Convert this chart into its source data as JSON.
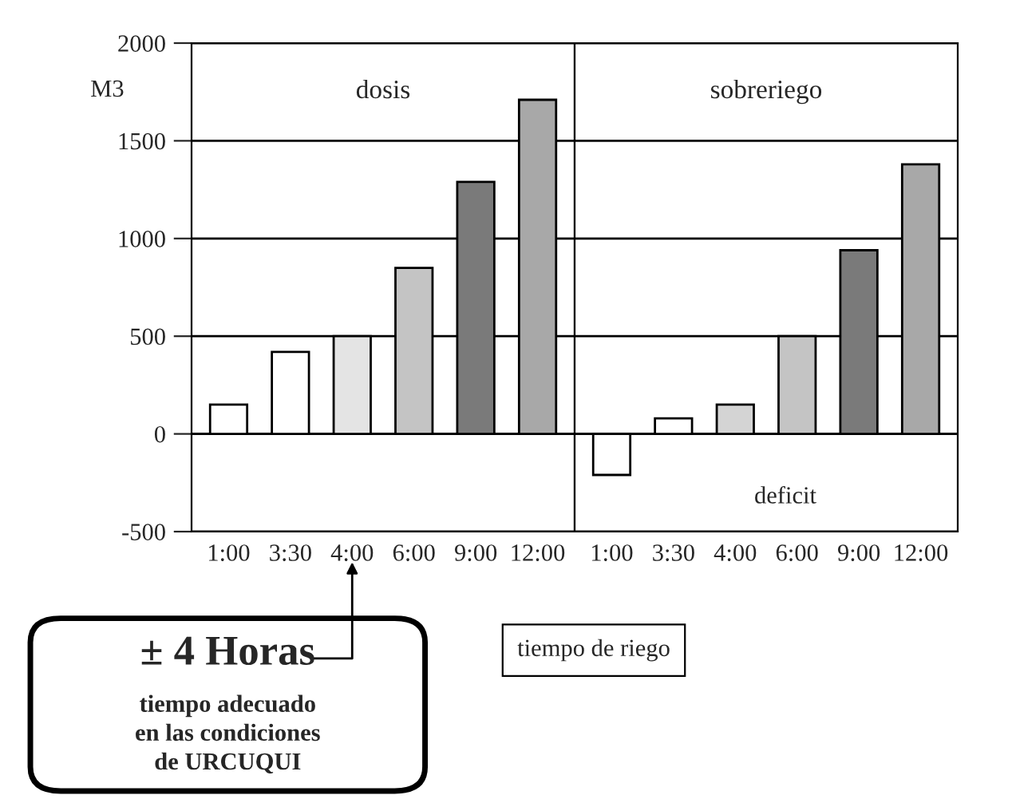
{
  "chart_data": [
    {
      "type": "bar",
      "title": "dosis",
      "ylabel": "M3",
      "categories": [
        "1:00",
        "3:30",
        "4:00",
        "6:00",
        "9:00",
        "12:00"
      ],
      "values": [
        150,
        420,
        500,
        850,
        1290,
        1710
      ],
      "colors": [
        "#ffffff",
        "#ffffff",
        "#e4e4e4",
        "#c4c4c4",
        "#7a7a7a",
        "#a8a8a8"
      ],
      "ylim": [
        -500,
        2000
      ],
      "yticks": [
        -500,
        0,
        500,
        1000,
        1500,
        2000
      ],
      "grid": "y",
      "annotations": [
        "± 4 Horas",
        "tiempo adecuado\nen las condiciones\nde URCUQUI"
      ]
    },
    {
      "type": "bar",
      "title": "sobreriego",
      "xlabel": "tiempo de riego",
      "categories": [
        "1:00",
        "3:30",
        "4:00",
        "6:00",
        "9:00",
        "12:00"
      ],
      "values": [
        -210,
        80,
        150,
        500,
        940,
        1380
      ],
      "colors": [
        "#ffffff",
        "#ffffff",
        "#d4d4d4",
        "#c4c4c4",
        "#7a7a7a",
        "#a8a8a8"
      ],
      "ylim": [
        -500,
        2000
      ],
      "yticks": [
        -500,
        0,
        500,
        1000,
        1500,
        2000
      ],
      "grid": "y",
      "tick_labels": "x",
      "annotations": [
        "deficit"
      ]
    }
  ]
}
